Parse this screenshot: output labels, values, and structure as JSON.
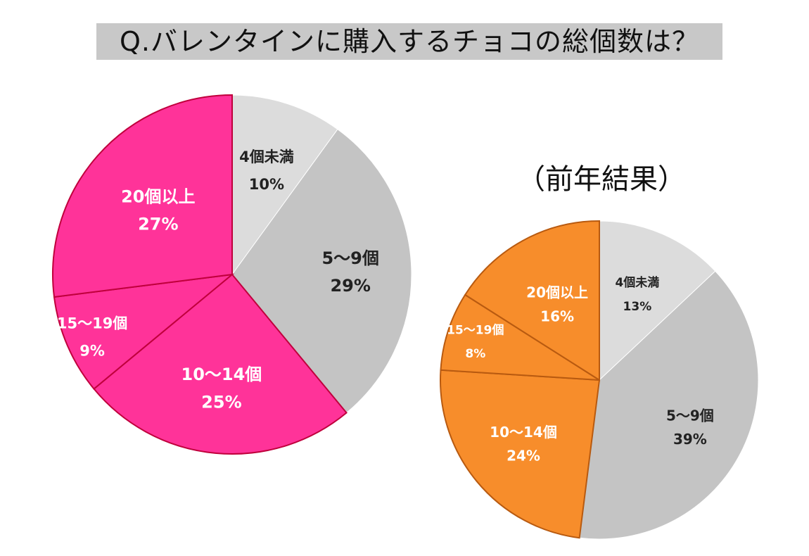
{
  "title": "Q.バレンタインに購入するチョコの総個数は？",
  "previous_caption": "（前年結果）",
  "chart_data": [
    {
      "type": "pie",
      "categories": [
        "4個未満",
        "5～9個",
        "10～14個",
        "15～19個",
        "20個以上"
      ],
      "values": [
        10,
        29,
        25,
        9,
        27
      ],
      "value_labels": [
        "10%",
        "29%",
        "25%",
        "9%",
        "27%"
      ],
      "colors": [
        "#dcdcdc",
        "#c4c4c4",
        "#ff3399",
        "#ff3399",
        "#ff3399"
      ],
      "edge_color": "#c0003c",
      "label_colors": [
        "#222222",
        "#222222",
        "#ffffff",
        "#ffffff",
        "#ffffff"
      ],
      "start_angle_deg": 0,
      "direction": "clockwise"
    },
    {
      "type": "pie",
      "categories": [
        "4個未満",
        "5～9個",
        "10～14個",
        "15～19個",
        "20個以上"
      ],
      "values": [
        13,
        39,
        24,
        8,
        16
      ],
      "value_labels": [
        "13%",
        "39%",
        "24%",
        "8%",
        "16%"
      ],
      "colors": [
        "#dcdcdc",
        "#c4c4c4",
        "#f78d2b",
        "#f78d2b",
        "#f78d2b"
      ],
      "edge_color": "#b85a10",
      "label_colors": [
        "#222222",
        "#222222",
        "#ffffff",
        "#ffffff",
        "#ffffff"
      ],
      "start_angle_deg": 0,
      "direction": "clockwise"
    }
  ]
}
